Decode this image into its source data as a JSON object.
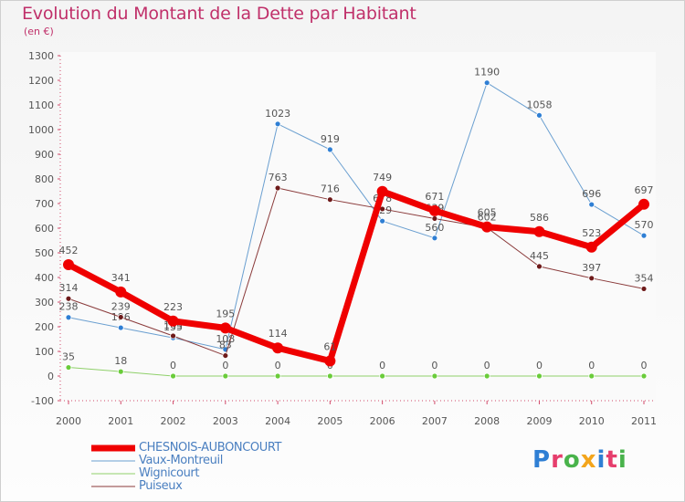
{
  "title": "Evolution du Montant de la Dette par Habitant",
  "subtitle": "(en €)",
  "logo": {
    "text": "Proxiti",
    "colors": [
      "#2f7fd4",
      "#e63e6d",
      "#49b34b",
      "#f3a51c",
      "#2f7fd4",
      "#e63e6d",
      "#49b34b"
    ]
  },
  "chart_data": {
    "type": "line",
    "title": "Evolution du Montant de la Dette par Habitant",
    "subtitle": "(en €)",
    "xlabel": "",
    "ylabel": "",
    "ylim": [
      -100,
      1300
    ],
    "yticks": [
      -100,
      0,
      100,
      200,
      300,
      400,
      500,
      600,
      700,
      800,
      900,
      1000,
      1100,
      1200,
      1300
    ],
    "x": [
      2000,
      2001,
      2002,
      2003,
      2004,
      2005,
      2006,
      2007,
      2008,
      2009,
      2010,
      2011
    ],
    "grid": false,
    "legend_position": "bottom-left",
    "series": [
      {
        "name": "Vaux-Montreuil",
        "color": "#6a9fd0",
        "marker": "#2f7fd4",
        "width": 1,
        "values": [
          238,
          196,
          155,
          108,
          1023,
          919,
          629,
          560,
          1190,
          1058,
          696,
          570
        ]
      },
      {
        "name": "Wignicourt",
        "color": "#8fd06a",
        "marker": "#6acc3a",
        "width": 1,
        "values": [
          35,
          18,
          0,
          0,
          0,
          0,
          0,
          0,
          0,
          0,
          0,
          0
        ]
      },
      {
        "name": "Puiseux",
        "color": "#8a3a3a",
        "marker": "#6e1a1a",
        "width": 1,
        "values": [
          314,
          239,
          163,
          83,
          763,
          716,
          678,
          639,
          602,
          445,
          397,
          354
        ]
      },
      {
        "name": "CHESNOIS-AUBONCOURT",
        "color": "#ef0000",
        "marker": "#ef0000",
        "width": 7,
        "values": [
          452,
          341,
          223,
          195,
          114,
          61,
          749,
          671,
          605,
          586,
          523,
          697
        ]
      }
    ]
  },
  "legend": [
    {
      "name": "CHESNOIS-AUBONCOURT",
      "color": "#ef0000",
      "text_color": "#4a7fc0",
      "width": 7
    },
    {
      "name": "Vaux-Montreuil",
      "color": "#6a9fd0",
      "text_color": "#4a7fc0",
      "width": 1
    },
    {
      "name": "Wignicourt",
      "color": "#8fd06a",
      "text_color": "#4a7fc0",
      "width": 1
    },
    {
      "name": "Puiseux",
      "color": "#8a3a3a",
      "text_color": "#4a7fc0",
      "width": 1
    }
  ]
}
